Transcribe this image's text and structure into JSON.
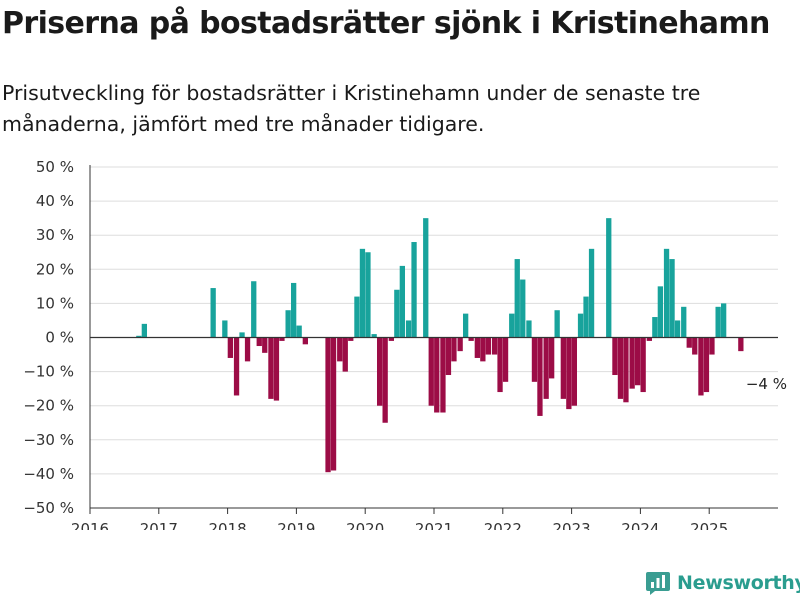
{
  "title": "Priserna på bostadsrätter sjönk i Kristinehamn",
  "subtitle": "Prisutveckling för bostadsrätter i Kristinehamn under de senaste tre månaderna, jämfört med tre månader tidigare.",
  "brand": {
    "name": "Newsworthy",
    "icon": "newsworthy-logo-icon",
    "color": "#3a9d92"
  },
  "colors": {
    "positive": "#18a39c",
    "negative": "#9c0c46",
    "grid": "#dddddd",
    "axis": "#333333"
  },
  "chart_data": {
    "type": "bar",
    "title": "Priserna på bostadsrätter sjönk i Kristinehamn",
    "xlabel": "",
    "ylabel": "",
    "y_ticks": [
      50,
      40,
      30,
      20,
      10,
      0,
      -10,
      -20,
      -30,
      -40,
      -50
    ],
    "y_tick_labels": [
      "50 %",
      "40 %",
      "30 %",
      "20 %",
      "10 %",
      "0 %",
      "−10 %",
      "−20 %",
      "−30 %",
      "−40 %",
      "−50 %"
    ],
    "ylim": [
      -50,
      50
    ],
    "x_ticks": [
      2016,
      2017,
      2018,
      2019,
      2020,
      2021,
      2022,
      2023,
      2024,
      2025
    ],
    "x_tick_labels": [
      "2016",
      "2017",
      "2018",
      "2019",
      "2020",
      "2021",
      "2022",
      "2023",
      "2024",
      "2025"
    ],
    "xlim": [
      2016,
      2026
    ],
    "grid": "horizontal",
    "annotation": {
      "text": "−4 %",
      "x": 2025.46,
      "y": -4
    },
    "series": [
      {
        "values": [
          {
            "x": 2016.71,
            "y": 0.5
          },
          {
            "x": 2016.79,
            "y": 4
          },
          {
            "x": 2017.79,
            "y": 14.5
          },
          {
            "x": 2017.96,
            "y": 5
          },
          {
            "x": 2018.04,
            "y": -6
          },
          {
            "x": 2018.13,
            "y": -17
          },
          {
            "x": 2018.21,
            "y": 1.5
          },
          {
            "x": 2018.29,
            "y": -7
          },
          {
            "x": 2018.38,
            "y": 16.5
          },
          {
            "x": 2018.46,
            "y": -2.5
          },
          {
            "x": 2018.54,
            "y": -4.5
          },
          {
            "x": 2018.63,
            "y": -18
          },
          {
            "x": 2018.71,
            "y": -18.5
          },
          {
            "x": 2018.79,
            "y": -1
          },
          {
            "x": 2018.88,
            "y": 8
          },
          {
            "x": 2018.96,
            "y": 16
          },
          {
            "x": 2019.04,
            "y": 3.5
          },
          {
            "x": 2019.13,
            "y": -2
          },
          {
            "x": 2019.46,
            "y": -39.5
          },
          {
            "x": 2019.54,
            "y": -39
          },
          {
            "x": 2019.63,
            "y": -7
          },
          {
            "x": 2019.71,
            "y": -10
          },
          {
            "x": 2019.79,
            "y": -1
          },
          {
            "x": 2019.88,
            "y": 12
          },
          {
            "x": 2019.96,
            "y": 26
          },
          {
            "x": 2020.04,
            "y": 25
          },
          {
            "x": 2020.13,
            "y": 1
          },
          {
            "x": 2020.21,
            "y": -20
          },
          {
            "x": 2020.29,
            "y": -25
          },
          {
            "x": 2020.38,
            "y": -1
          },
          {
            "x": 2020.46,
            "y": 14
          },
          {
            "x": 2020.54,
            "y": 21
          },
          {
            "x": 2020.63,
            "y": 5
          },
          {
            "x": 2020.71,
            "y": 28
          },
          {
            "x": 2020.88,
            "y": 35
          },
          {
            "x": 2020.96,
            "y": -20
          },
          {
            "x": 2021.04,
            "y": -22
          },
          {
            "x": 2021.13,
            "y": -22
          },
          {
            "x": 2021.21,
            "y": -11
          },
          {
            "x": 2021.29,
            "y": -7
          },
          {
            "x": 2021.38,
            "y": -4
          },
          {
            "x": 2021.46,
            "y": 7
          },
          {
            "x": 2021.54,
            "y": -1
          },
          {
            "x": 2021.63,
            "y": -6
          },
          {
            "x": 2021.71,
            "y": -7
          },
          {
            "x": 2021.79,
            "y": -5
          },
          {
            "x": 2021.88,
            "y": -5
          },
          {
            "x": 2021.96,
            "y": -16
          },
          {
            "x": 2022.04,
            "y": -13
          },
          {
            "x": 2022.13,
            "y": 7
          },
          {
            "x": 2022.21,
            "y": 23
          },
          {
            "x": 2022.29,
            "y": 17
          },
          {
            "x": 2022.38,
            "y": 5
          },
          {
            "x": 2022.46,
            "y": -13
          },
          {
            "x": 2022.54,
            "y": -23
          },
          {
            "x": 2022.63,
            "y": -18
          },
          {
            "x": 2022.71,
            "y": -12
          },
          {
            "x": 2022.79,
            "y": 8
          },
          {
            "x": 2022.88,
            "y": -18
          },
          {
            "x": 2022.96,
            "y": -21
          },
          {
            "x": 2023.04,
            "y": -20
          },
          {
            "x": 2023.13,
            "y": 7
          },
          {
            "x": 2023.21,
            "y": 12
          },
          {
            "x": 2023.29,
            "y": 26
          },
          {
            "x": 2023.54,
            "y": 35
          },
          {
            "x": 2023.63,
            "y": -11
          },
          {
            "x": 2023.71,
            "y": -18
          },
          {
            "x": 2023.79,
            "y": -19
          },
          {
            "x": 2023.88,
            "y": -15
          },
          {
            "x": 2023.96,
            "y": -14
          },
          {
            "x": 2024.04,
            "y": -16
          },
          {
            "x": 2024.13,
            "y": -1
          },
          {
            "x": 2024.21,
            "y": 6
          },
          {
            "x": 2024.29,
            "y": 15
          },
          {
            "x": 2024.38,
            "y": 26
          },
          {
            "x": 2024.46,
            "y": 23
          },
          {
            "x": 2024.54,
            "y": 5
          },
          {
            "x": 2024.63,
            "y": 9
          },
          {
            "x": 2024.71,
            "y": -3
          },
          {
            "x": 2024.79,
            "y": -5
          },
          {
            "x": 2024.88,
            "y": -17
          },
          {
            "x": 2024.96,
            "y": -16
          },
          {
            "x": 2025.04,
            "y": -5
          },
          {
            "x": 2025.13,
            "y": 9
          },
          {
            "x": 2025.21,
            "y": 10
          },
          {
            "x": 2025.46,
            "y": -4
          }
        ]
      }
    ]
  }
}
